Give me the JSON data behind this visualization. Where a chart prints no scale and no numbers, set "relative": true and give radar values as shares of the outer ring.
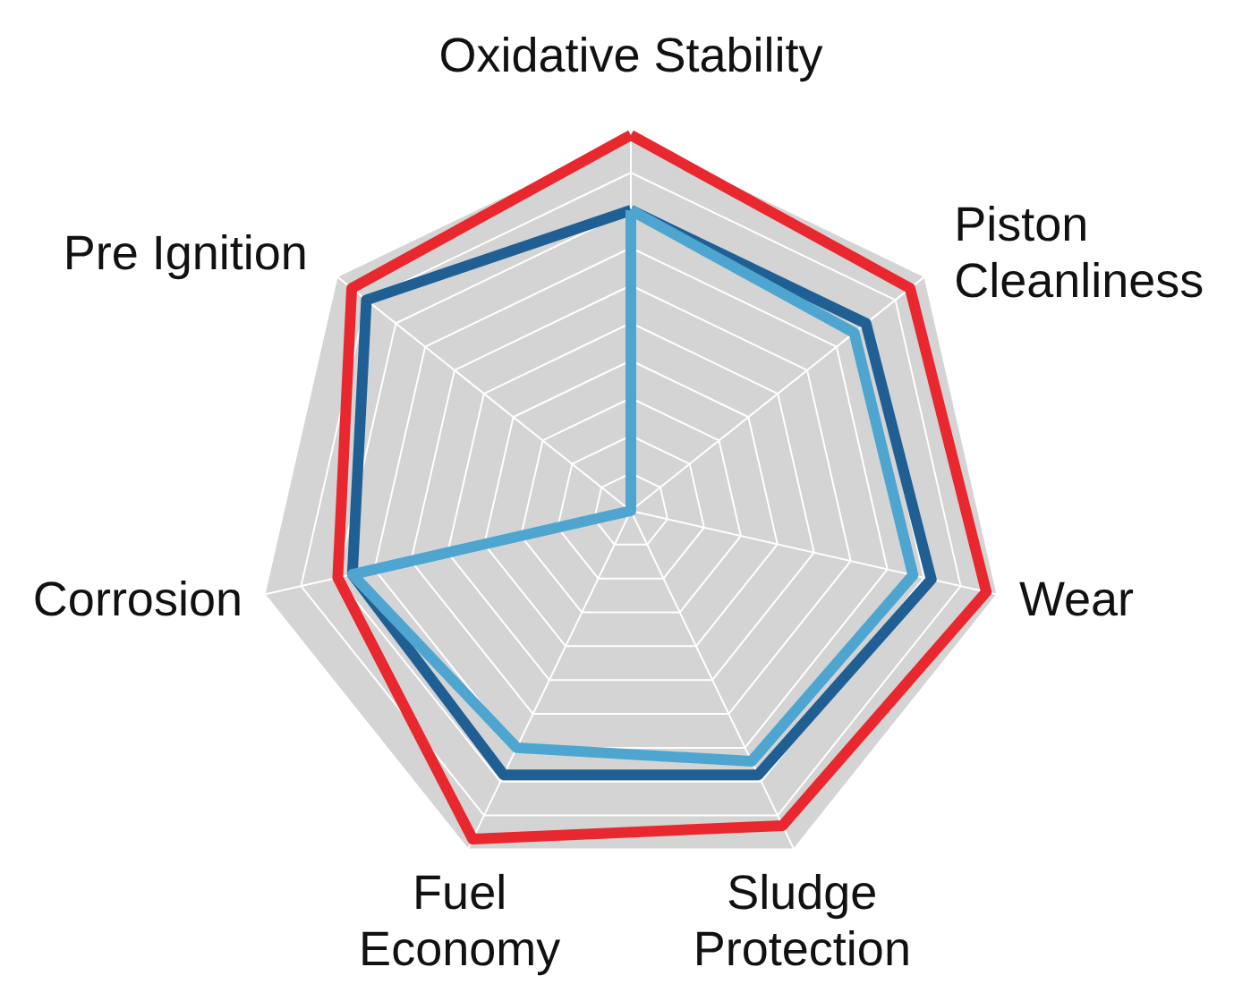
{
  "chart_data": {
    "type": "radar",
    "relative": true,
    "grid": true,
    "categories": [
      "Oxidative Stability",
      "Piston\nCleanliness",
      "Wear",
      "Sludge\nProtection",
      "Fuel\nEconomy",
      "Corrosion",
      "Pre Ignition"
    ],
    "series": [
      {
        "color": "#e8282e",
        "values": [
          1.0,
          0.95,
          0.97,
          0.93,
          0.97,
          0.8,
          0.95
        ]
      },
      {
        "color": "#1f5f94",
        "values": [
          0.8,
          0.8,
          0.82,
          0.78,
          0.78,
          0.76,
          0.9
        ]
      },
      {
        "color": "#4ea6d0",
        "values": [
          0.8,
          0.76,
          0.77,
          0.74,
          0.7,
          0.76,
          0.0
        ]
      }
    ]
  }
}
